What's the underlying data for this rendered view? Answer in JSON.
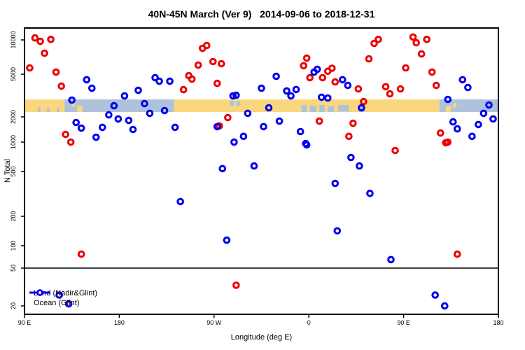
{
  "title": "40N-45N March (Ver 9)   2014-09-06 to 2018-12-31",
  "axes": {
    "y_label": "N Total",
    "x_label": "Longitude (deg E)",
    "y_scale": "log",
    "y_tick_values": [
      10000,
      5000,
      2000,
      1000,
      500,
      200,
      100,
      50,
      20
    ],
    "x_ticks": [
      {
        "label": "90 E",
        "deg": 0
      },
      {
        "label": "180",
        "deg": 90
      },
      {
        "label": "90 W",
        "deg": 180
      },
      {
        "label": "0",
        "deg": 270
      },
      {
        "label": "90 E",
        "deg": 360
      },
      {
        "label": "180",
        "deg": 450
      }
    ],
    "x_axis_note": "longitude axis spans 450 deg eastward starting at 90E: 90E > 180 > 90W > 0 > 90E > 180"
  },
  "colors": {
    "land_series": "#EE0000",
    "ocean_series": "#0000EE",
    "map_land": "#F9D77E",
    "map_ocean": "#AFC2DC",
    "frame": "#000000"
  },
  "legend": [
    {
      "label": "Land (Nadir&Glint)",
      "color": "#EE0000"
    },
    {
      "label": "Ocean (Glint)",
      "color": "#0000EE"
    }
  ],
  "reference_line_value": 50,
  "map_strip": {
    "description": "land/ocean map band of the 40N-45N latitude strip drawn across the plot near N=2500",
    "segments": [
      {
        "from": 0,
        "to": 38,
        "surface": "land"
      },
      {
        "from": 38,
        "to": 142,
        "surface": "ocean"
      },
      {
        "from": 142,
        "to": 394,
        "surface": "land"
      },
      {
        "from": 394,
        "to": 450,
        "surface": "ocean"
      }
    ],
    "patches": [
      {
        "from": 50,
        "to": 55,
        "t": 0.5,
        "h": 0.5,
        "surface": "land"
      },
      {
        "from": 45,
        "to": 48,
        "t": 0.25,
        "h": 0.35,
        "surface": "land"
      },
      {
        "from": 13,
        "to": 15,
        "t": 0.6,
        "h": 0.4,
        "surface": "ocean"
      },
      {
        "from": 21,
        "to": 24,
        "t": 0.7,
        "h": 0.3,
        "surface": "ocean"
      },
      {
        "from": 31,
        "to": 33,
        "t": 0.65,
        "h": 0.35,
        "surface": "ocean"
      },
      {
        "from": 195,
        "to": 199,
        "t": 0.1,
        "h": 0.4,
        "surface": "ocean"
      },
      {
        "from": 201,
        "to": 205,
        "t": 0.15,
        "h": 0.35,
        "surface": "ocean"
      },
      {
        "from": 263,
        "to": 268,
        "t": 0.45,
        "h": 0.55,
        "surface": "ocean"
      },
      {
        "from": 271,
        "to": 277,
        "t": 0.5,
        "h": 0.5,
        "surface": "ocean"
      },
      {
        "from": 280,
        "to": 285,
        "t": 0.45,
        "h": 0.55,
        "surface": "ocean"
      },
      {
        "from": 288,
        "to": 294,
        "t": 0.55,
        "h": 0.45,
        "surface": "ocean"
      },
      {
        "from": 298,
        "to": 308,
        "t": 0.45,
        "h": 0.5,
        "surface": "ocean"
      },
      {
        "from": 317,
        "to": 323,
        "t": 0.5,
        "h": 0.5,
        "surface": "ocean"
      },
      {
        "from": 400,
        "to": 405,
        "t": 0.5,
        "h": 0.5,
        "surface": "land"
      },
      {
        "from": 407,
        "to": 410,
        "t": 0.3,
        "h": 0.35,
        "surface": "land"
      }
    ]
  },
  "chart_data": {
    "type": "scatter",
    "title": "40N-45N March (Ver 9)   2014-09-06 to 2018-12-31",
    "xlabel": "Longitude (deg E)",
    "ylabel": "N Total",
    "yscale": "log",
    "ylim": [
      16,
      13500
    ],
    "x_unit": "degrees east of 90E along a 450-degree axis (90E,180,90W,0,90E,180)",
    "grid": false,
    "legend_position": "bottom-left",
    "series": [
      {
        "name": "Land (Nadir&Glint)",
        "color": "#EE0000",
        "points": [
          [
            10,
            10400
          ],
          [
            15,
            9720
          ],
          [
            25,
            10100
          ],
          [
            19,
            7640
          ],
          [
            5,
            5680
          ],
          [
            30,
            5215
          ],
          [
            35,
            3870
          ],
          [
            39,
            1236
          ],
          [
            44,
            1000
          ],
          [
            54,
            77
          ],
          [
            151,
            3590
          ],
          [
            169,
            8440
          ],
          [
            173,
            8930
          ],
          [
            165,
            6010
          ],
          [
            179,
            6450
          ],
          [
            187,
            6180
          ],
          [
            156,
            4850
          ],
          [
            159,
            4500
          ],
          [
            183,
            4110
          ],
          [
            193,
            1960
          ],
          [
            185,
            1560
          ],
          [
            268,
            6920
          ],
          [
            265,
            5930
          ],
          [
            271,
            4640
          ],
          [
            288,
            5310
          ],
          [
            292,
            5640
          ],
          [
            283,
            4640
          ],
          [
            295,
            4240
          ],
          [
            280,
            1780
          ],
          [
            332,
            9320
          ],
          [
            336,
            10100
          ],
          [
            369,
            10600
          ],
          [
            372,
            9440
          ],
          [
            382,
            10100
          ],
          [
            377,
            7530
          ],
          [
            327,
            6820
          ],
          [
            362,
            5680
          ],
          [
            387,
            5215
          ],
          [
            391,
            3930
          ],
          [
            343,
            3820
          ],
          [
            357,
            3650
          ],
          [
            347,
            3280
          ],
          [
            317,
            3650
          ],
          [
            322,
            2780
          ],
          [
            312,
            1680
          ],
          [
            308,
            1170
          ],
          [
            395,
            1285
          ],
          [
            400,
            985
          ],
          [
            352,
            820
          ],
          [
            402,
            1000
          ],
          [
            411,
            77
          ],
          [
            201,
            33
          ]
        ]
      },
      {
        "name": "Ocean (Glint)",
        "color": "#0000EE",
        "points": [
          [
            59,
            4440
          ],
          [
            64,
            3700
          ],
          [
            45,
            2870
          ],
          [
            85,
            2540
          ],
          [
            95,
            3140
          ],
          [
            108,
            3540
          ],
          [
            114,
            2660
          ],
          [
            80,
            2090
          ],
          [
            89,
            1890
          ],
          [
            99,
            1816
          ],
          [
            103,
            1413
          ],
          [
            74,
            1500
          ],
          [
            68,
            1145
          ],
          [
            49,
            1715
          ],
          [
            54,
            1470
          ],
          [
            124,
            4640
          ],
          [
            128,
            4300
          ],
          [
            138,
            4300
          ],
          [
            119,
            2160
          ],
          [
            133,
            2290
          ],
          [
            143,
            1500
          ],
          [
            239,
            4780
          ],
          [
            225,
            3700
          ],
          [
            249,
            3490
          ],
          [
            258,
            3600
          ],
          [
            253,
            3140
          ],
          [
            201,
            3180
          ],
          [
            198,
            3140
          ],
          [
            278,
            5520
          ],
          [
            275,
            5215
          ],
          [
            282,
            3050
          ],
          [
            288,
            3000
          ],
          [
            212,
            2160
          ],
          [
            232,
            2430
          ],
          [
            227,
            1530
          ],
          [
            242,
            1780
          ],
          [
            183,
            1530
          ],
          [
            199,
            1000
          ],
          [
            208,
            1170
          ],
          [
            262,
            1335
          ],
          [
            267,
            968
          ],
          [
            302,
            4440
          ],
          [
            307,
            3930
          ],
          [
            416,
            4440
          ],
          [
            421,
            3760
          ],
          [
            402,
            2910
          ],
          [
            320,
            2430
          ],
          [
            441,
            2580
          ],
          [
            436,
            2160
          ],
          [
            445,
            1890
          ],
          [
            407,
            1746
          ],
          [
            411,
            1440
          ],
          [
            431,
            1620
          ],
          [
            425,
            1170
          ],
          [
            148,
            270
          ],
          [
            192,
            114
          ],
          [
            33,
            26
          ],
          [
            42,
            21
          ],
          [
            188,
            535
          ],
          [
            218,
            570
          ],
          [
            268,
            936
          ],
          [
            310,
            695
          ],
          [
            318,
            570
          ],
          [
            295,
            392
          ],
          [
            328,
            320
          ],
          [
            297,
            142
          ],
          [
            348,
            65
          ],
          [
            390,
            26
          ],
          [
            399,
            20
          ]
        ]
      }
    ]
  }
}
